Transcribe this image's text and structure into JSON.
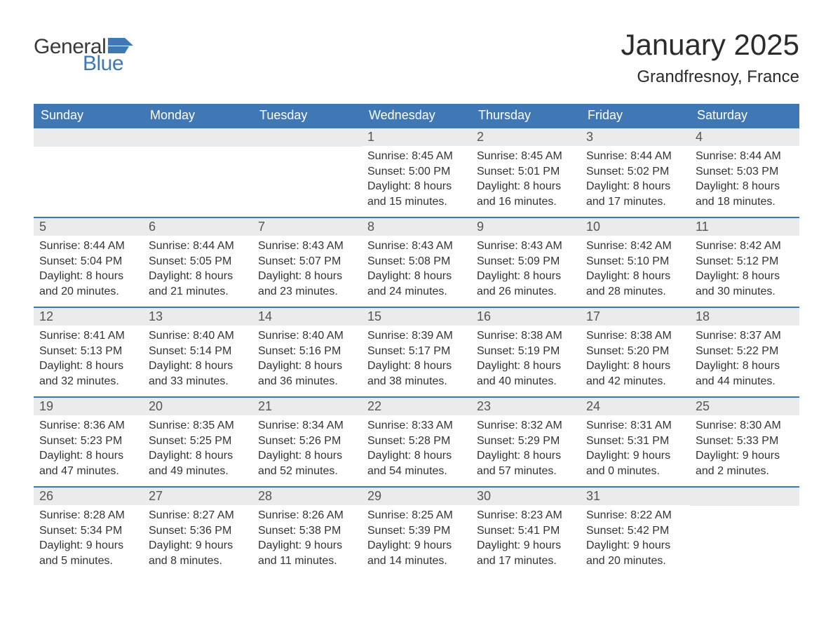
{
  "brand": {
    "word1": "General",
    "word2": "Blue",
    "word1_color": "#3a3a3a",
    "word2_color": "#3f78b5",
    "flag_color": "#3f78b5"
  },
  "title": "January 2025",
  "location": "Grandfresnoy, France",
  "colors": {
    "header_bg": "#3f78b5",
    "header_text": "#ffffff",
    "daynum_bg": "#ebebeb",
    "daynum_text": "#555555",
    "row_border": "#3f78b5",
    "body_text": "#333333",
    "page_bg": "#ffffff"
  },
  "typography": {
    "title_fontsize": 42,
    "location_fontsize": 24,
    "header_fontsize": 18,
    "daynum_fontsize": 18,
    "body_fontsize": 16
  },
  "day_headers": [
    "Sunday",
    "Monday",
    "Tuesday",
    "Wednesday",
    "Thursday",
    "Friday",
    "Saturday"
  ],
  "weeks": [
    [
      null,
      null,
      null,
      {
        "n": "1",
        "sunrise": "Sunrise: 8:45 AM",
        "sunset": "Sunset: 5:00 PM",
        "dl1": "Daylight: 8 hours",
        "dl2": "and 15 minutes."
      },
      {
        "n": "2",
        "sunrise": "Sunrise: 8:45 AM",
        "sunset": "Sunset: 5:01 PM",
        "dl1": "Daylight: 8 hours",
        "dl2": "and 16 minutes."
      },
      {
        "n": "3",
        "sunrise": "Sunrise: 8:44 AM",
        "sunset": "Sunset: 5:02 PM",
        "dl1": "Daylight: 8 hours",
        "dl2": "and 17 minutes."
      },
      {
        "n": "4",
        "sunrise": "Sunrise: 8:44 AM",
        "sunset": "Sunset: 5:03 PM",
        "dl1": "Daylight: 8 hours",
        "dl2": "and 18 minutes."
      }
    ],
    [
      {
        "n": "5",
        "sunrise": "Sunrise: 8:44 AM",
        "sunset": "Sunset: 5:04 PM",
        "dl1": "Daylight: 8 hours",
        "dl2": "and 20 minutes."
      },
      {
        "n": "6",
        "sunrise": "Sunrise: 8:44 AM",
        "sunset": "Sunset: 5:05 PM",
        "dl1": "Daylight: 8 hours",
        "dl2": "and 21 minutes."
      },
      {
        "n": "7",
        "sunrise": "Sunrise: 8:43 AM",
        "sunset": "Sunset: 5:07 PM",
        "dl1": "Daylight: 8 hours",
        "dl2": "and 23 minutes."
      },
      {
        "n": "8",
        "sunrise": "Sunrise: 8:43 AM",
        "sunset": "Sunset: 5:08 PM",
        "dl1": "Daylight: 8 hours",
        "dl2": "and 24 minutes."
      },
      {
        "n": "9",
        "sunrise": "Sunrise: 8:43 AM",
        "sunset": "Sunset: 5:09 PM",
        "dl1": "Daylight: 8 hours",
        "dl2": "and 26 minutes."
      },
      {
        "n": "10",
        "sunrise": "Sunrise: 8:42 AM",
        "sunset": "Sunset: 5:10 PM",
        "dl1": "Daylight: 8 hours",
        "dl2": "and 28 minutes."
      },
      {
        "n": "11",
        "sunrise": "Sunrise: 8:42 AM",
        "sunset": "Sunset: 5:12 PM",
        "dl1": "Daylight: 8 hours",
        "dl2": "and 30 minutes."
      }
    ],
    [
      {
        "n": "12",
        "sunrise": "Sunrise: 8:41 AM",
        "sunset": "Sunset: 5:13 PM",
        "dl1": "Daylight: 8 hours",
        "dl2": "and 32 minutes."
      },
      {
        "n": "13",
        "sunrise": "Sunrise: 8:40 AM",
        "sunset": "Sunset: 5:14 PM",
        "dl1": "Daylight: 8 hours",
        "dl2": "and 33 minutes."
      },
      {
        "n": "14",
        "sunrise": "Sunrise: 8:40 AM",
        "sunset": "Sunset: 5:16 PM",
        "dl1": "Daylight: 8 hours",
        "dl2": "and 36 minutes."
      },
      {
        "n": "15",
        "sunrise": "Sunrise: 8:39 AM",
        "sunset": "Sunset: 5:17 PM",
        "dl1": "Daylight: 8 hours",
        "dl2": "and 38 minutes."
      },
      {
        "n": "16",
        "sunrise": "Sunrise: 8:38 AM",
        "sunset": "Sunset: 5:19 PM",
        "dl1": "Daylight: 8 hours",
        "dl2": "and 40 minutes."
      },
      {
        "n": "17",
        "sunrise": "Sunrise: 8:38 AM",
        "sunset": "Sunset: 5:20 PM",
        "dl1": "Daylight: 8 hours",
        "dl2": "and 42 minutes."
      },
      {
        "n": "18",
        "sunrise": "Sunrise: 8:37 AM",
        "sunset": "Sunset: 5:22 PM",
        "dl1": "Daylight: 8 hours",
        "dl2": "and 44 minutes."
      }
    ],
    [
      {
        "n": "19",
        "sunrise": "Sunrise: 8:36 AM",
        "sunset": "Sunset: 5:23 PM",
        "dl1": "Daylight: 8 hours",
        "dl2": "and 47 minutes."
      },
      {
        "n": "20",
        "sunrise": "Sunrise: 8:35 AM",
        "sunset": "Sunset: 5:25 PM",
        "dl1": "Daylight: 8 hours",
        "dl2": "and 49 minutes."
      },
      {
        "n": "21",
        "sunrise": "Sunrise: 8:34 AM",
        "sunset": "Sunset: 5:26 PM",
        "dl1": "Daylight: 8 hours",
        "dl2": "and 52 minutes."
      },
      {
        "n": "22",
        "sunrise": "Sunrise: 8:33 AM",
        "sunset": "Sunset: 5:28 PM",
        "dl1": "Daylight: 8 hours",
        "dl2": "and 54 minutes."
      },
      {
        "n": "23",
        "sunrise": "Sunrise: 8:32 AM",
        "sunset": "Sunset: 5:29 PM",
        "dl1": "Daylight: 8 hours",
        "dl2": "and 57 minutes."
      },
      {
        "n": "24",
        "sunrise": "Sunrise: 8:31 AM",
        "sunset": "Sunset: 5:31 PM",
        "dl1": "Daylight: 9 hours",
        "dl2": "and 0 minutes."
      },
      {
        "n": "25",
        "sunrise": "Sunrise: 8:30 AM",
        "sunset": "Sunset: 5:33 PM",
        "dl1": "Daylight: 9 hours",
        "dl2": "and 2 minutes."
      }
    ],
    [
      {
        "n": "26",
        "sunrise": "Sunrise: 8:28 AM",
        "sunset": "Sunset: 5:34 PM",
        "dl1": "Daylight: 9 hours",
        "dl2": "and 5 minutes."
      },
      {
        "n": "27",
        "sunrise": "Sunrise: 8:27 AM",
        "sunset": "Sunset: 5:36 PM",
        "dl1": "Daylight: 9 hours",
        "dl2": "and 8 minutes."
      },
      {
        "n": "28",
        "sunrise": "Sunrise: 8:26 AM",
        "sunset": "Sunset: 5:38 PM",
        "dl1": "Daylight: 9 hours",
        "dl2": "and 11 minutes."
      },
      {
        "n": "29",
        "sunrise": "Sunrise: 8:25 AM",
        "sunset": "Sunset: 5:39 PM",
        "dl1": "Daylight: 9 hours",
        "dl2": "and 14 minutes."
      },
      {
        "n": "30",
        "sunrise": "Sunrise: 8:23 AM",
        "sunset": "Sunset: 5:41 PM",
        "dl1": "Daylight: 9 hours",
        "dl2": "and 17 minutes."
      },
      {
        "n": "31",
        "sunrise": "Sunrise: 8:22 AM",
        "sunset": "Sunset: 5:42 PM",
        "dl1": "Daylight: 9 hours",
        "dl2": "and 20 minutes."
      },
      null
    ]
  ]
}
